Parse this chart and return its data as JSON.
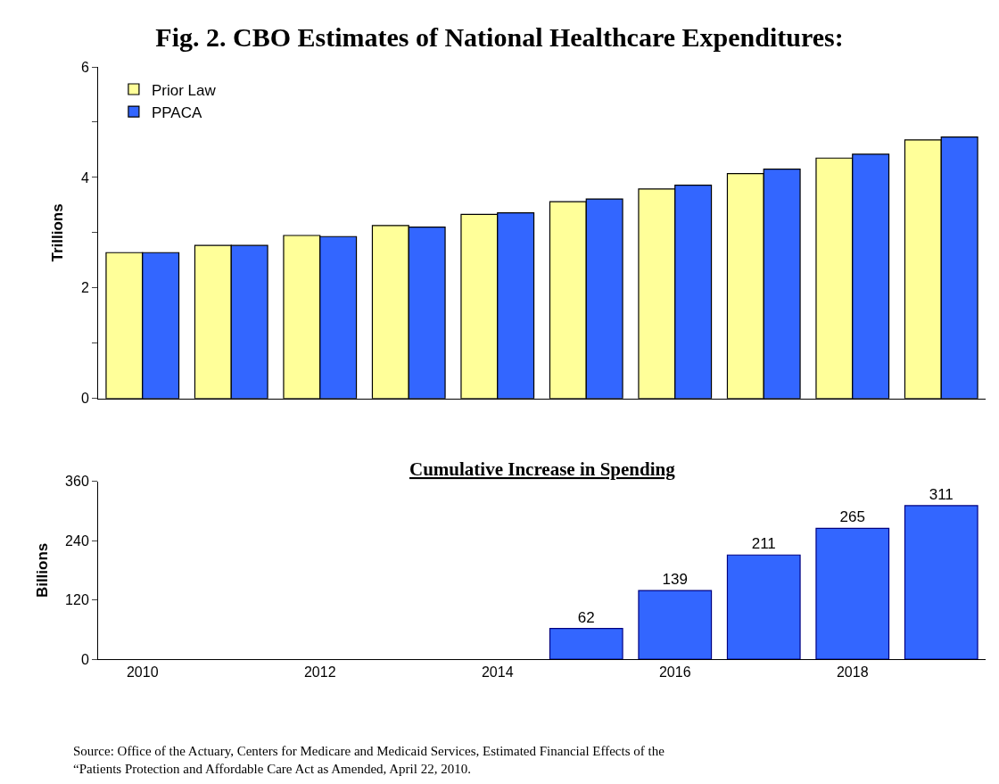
{
  "chart_data": [
    {
      "type": "bar",
      "title": "Fig. 2. CBO Estimates of National Healthcare Expenditures:",
      "ylabel": "Trillions",
      "categories": [
        "2010",
        null,
        "2012",
        null,
        "2014",
        null,
        "2016",
        null,
        "2018",
        null
      ],
      "series": [
        {
          "name": "Prior Law",
          "color": "#ffff99",
          "values": [
            2.64,
            2.77,
            2.95,
            3.13,
            3.33,
            3.56,
            3.79,
            4.07,
            4.35,
            4.68
          ]
        },
        {
          "name": "PPACA",
          "color": "#3366ff",
          "values": [
            2.64,
            2.77,
            2.93,
            3.1,
            3.36,
            3.61,
            3.86,
            4.15,
            4.42,
            4.73
          ]
        }
      ],
      "ylim": [
        0,
        6
      ],
      "yticks": [
        0,
        {
          "value": 1,
          "label": null
        },
        2,
        {
          "value": 3,
          "label": null
        },
        4,
        {
          "value": 5,
          "label": null
        },
        6
      ],
      "legend": "top left",
      "tick_labels": "y"
    },
    {
      "type": "bar",
      "subtitle": "Cumulative Increase in Spending",
      "ylabel": "Billions",
      "categories": [
        "2010",
        null,
        "2012",
        null,
        "2014",
        null,
        "2016",
        null,
        "2018",
        null
      ],
      "series": [
        {
          "color": "#3366ff",
          "values": [
            null,
            null,
            null,
            null,
            null,
            62,
            139,
            211,
            265,
            311
          ]
        }
      ],
      "ylim": [
        0,
        360
      ],
      "yticks": [
        0,
        120,
        240,
        360
      ],
      "data_labels": true,
      "annotations": [
        "Source: Office of the Actuary, Centers for Medicare and Medicaid Services, Estimated Financial Effects of the “Patients Protection and Affordable Care Act as Amended, April 22, 2010."
      ]
    }
  ]
}
